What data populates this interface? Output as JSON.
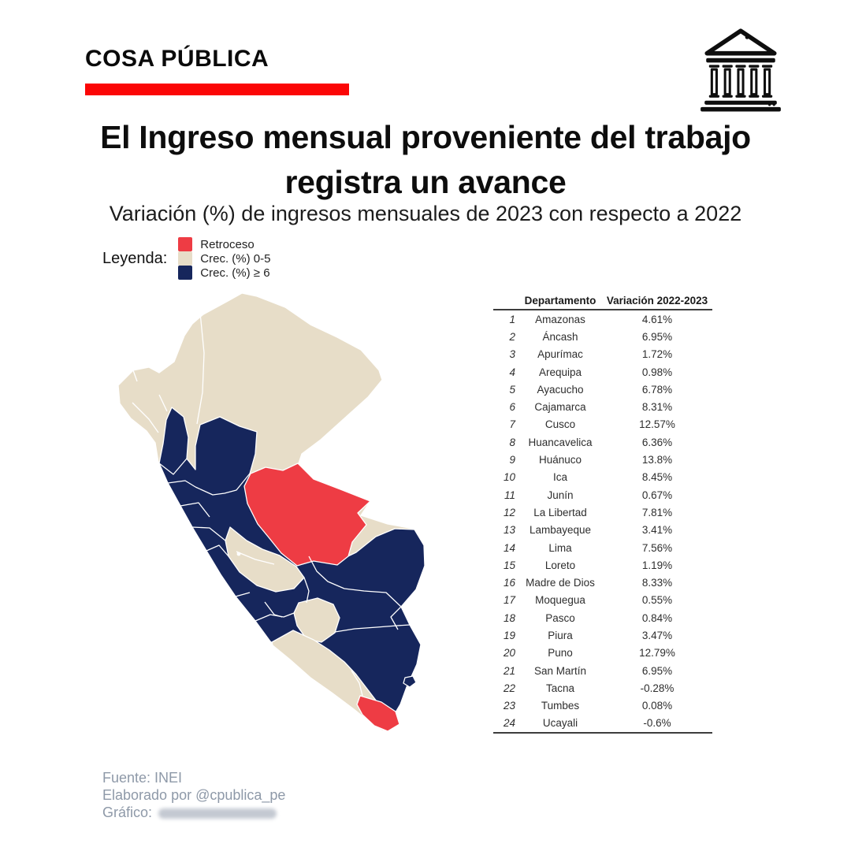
{
  "brand": {
    "name": "COSA PÚBLICA"
  },
  "header": {
    "title_line1": "El Ingreso mensual proveniente del trabajo",
    "title_line2": "registra un avance",
    "subtitle": "Variación (%) de ingresos mensuales de 2023 con respecto a 2022"
  },
  "colors": {
    "banner_red": "#fb0606",
    "red": "#ee3c44",
    "beige": "#e7ddc8",
    "navy": "#16265c",
    "white": "#ffffff",
    "icon_black": "#0e0e0e",
    "footer_gray": "#8e99a8"
  },
  "legend": {
    "label": "Leyenda:",
    "items": [
      {
        "label": "Retroceso",
        "color_key": "red"
      },
      {
        "label": "Crec. (%) 0-5",
        "color_key": "beige"
      },
      {
        "label": "Crec. (%) ≥ 6",
        "color_key": "navy"
      }
    ]
  },
  "table": {
    "columns": {
      "num": "",
      "name": "Departamento",
      "value": "Variación 2022-2023"
    },
    "rows": [
      {
        "n": "1",
        "name": "Amazonas",
        "value": "4.61%"
      },
      {
        "n": "2",
        "name": "Áncash",
        "value": "6.95%"
      },
      {
        "n": "3",
        "name": "Apurímac",
        "value": "1.72%"
      },
      {
        "n": "4",
        "name": "Arequipa",
        "value": "0.98%"
      },
      {
        "n": "5",
        "name": "Ayacucho",
        "value": "6.78%"
      },
      {
        "n": "6",
        "name": "Cajamarca",
        "value": "8.31%"
      },
      {
        "n": "7",
        "name": "Cusco",
        "value": "12.57%"
      },
      {
        "n": "8",
        "name": "Huancavelica",
        "value": "6.36%"
      },
      {
        "n": "9",
        "name": "Huánuco",
        "value": "13.8%"
      },
      {
        "n": "10",
        "name": "Ica",
        "value": "8.45%"
      },
      {
        "n": "11",
        "name": "Junín",
        "value": "0.67%"
      },
      {
        "n": "12",
        "name": "La Libertad",
        "value": "7.81%"
      },
      {
        "n": "13",
        "name": "Lambayeque",
        "value": "3.41%"
      },
      {
        "n": "14",
        "name": "Lima",
        "value": "7.56%"
      },
      {
        "n": "15",
        "name": "Loreto",
        "value": "1.19%"
      },
      {
        "n": "16",
        "name": "Madre de Dios",
        "value": "8.33%"
      },
      {
        "n": "17",
        "name": "Moquegua",
        "value": "0.55%"
      },
      {
        "n": "18",
        "name": "Pasco",
        "value": "0.84%"
      },
      {
        "n": "19",
        "name": "Piura",
        "value": "3.47%"
      },
      {
        "n": "20",
        "name": "Puno",
        "value": "12.79%"
      },
      {
        "n": "21",
        "name": "San Martín",
        "value": "6.95%"
      },
      {
        "n": "22",
        "name": "Tacna",
        "value": "-0.28%"
      },
      {
        "n": "23",
        "name": "Tumbes",
        "value": "0.08%"
      },
      {
        "n": "24",
        "name": "Ucayali",
        "value": "-0.6%"
      }
    ]
  },
  "chart_data": {
    "type": "table",
    "title": "El Ingreso mensual proveniente del trabajo registra un avance",
    "subtitle": "Variación (%) de ingresos mensuales de 2023 con respecto a 2022",
    "columns": [
      "Departamento",
      "Variación 2022-2023"
    ],
    "rows": [
      [
        "Amazonas",
        4.61
      ],
      [
        "Áncash",
        6.95
      ],
      [
        "Apurímac",
        1.72
      ],
      [
        "Arequipa",
        0.98
      ],
      [
        "Ayacucho",
        6.78
      ],
      [
        "Cajamarca",
        8.31
      ],
      [
        "Cusco",
        12.57
      ],
      [
        "Huancavelica",
        6.36
      ],
      [
        "Huánuco",
        13.8
      ],
      [
        "Ica",
        8.45
      ],
      [
        "Junín",
        0.67
      ],
      [
        "La Libertad",
        7.81
      ],
      [
        "Lambayeque",
        3.41
      ],
      [
        "Lima",
        7.56
      ],
      [
        "Loreto",
        1.19
      ],
      [
        "Madre de Dios",
        8.33
      ],
      [
        "Moquegua",
        0.55
      ],
      [
        "Pasco",
        0.84
      ],
      [
        "Piura",
        3.47
      ],
      [
        "Puno",
        12.79
      ],
      [
        "San Martín",
        6.95
      ],
      [
        "Tacna",
        -0.28
      ],
      [
        "Tumbes",
        0.08
      ],
      [
        "Ucayali",
        -0.6
      ]
    ],
    "map": {
      "type": "choropleth",
      "legend_classes": [
        {
          "label": "Retroceso",
          "color": "#ee3c44"
        },
        {
          "label": "Crec. (%) 0-5",
          "color": "#e7ddc8"
        },
        {
          "label": "Crec. (%) ≥ 6",
          "color": "#16265c"
        }
      ],
      "department_classes": {
        "Retroceso": [
          "Tacna",
          "Ucayali"
        ],
        "Crec. (%) 0-5": [
          "Amazonas",
          "Apurímac",
          "Arequipa",
          "Junín",
          "Lambayeque",
          "Loreto",
          "Moquegua",
          "Pasco",
          "Piura",
          "Tumbes"
        ],
        "Crec. (%) ≥ 6": [
          "Áncash",
          "Ayacucho",
          "Cajamarca",
          "Cusco",
          "Huancavelica",
          "Huánuco",
          "Ica",
          "La Libertad",
          "Lima",
          "Madre de Dios",
          "Puno",
          "San Martín"
        ]
      }
    }
  },
  "footer": {
    "source": "Fuente: INEI",
    "author": "Elaborado por @cpublica_pe",
    "graphic_label": "Gráfico:"
  }
}
